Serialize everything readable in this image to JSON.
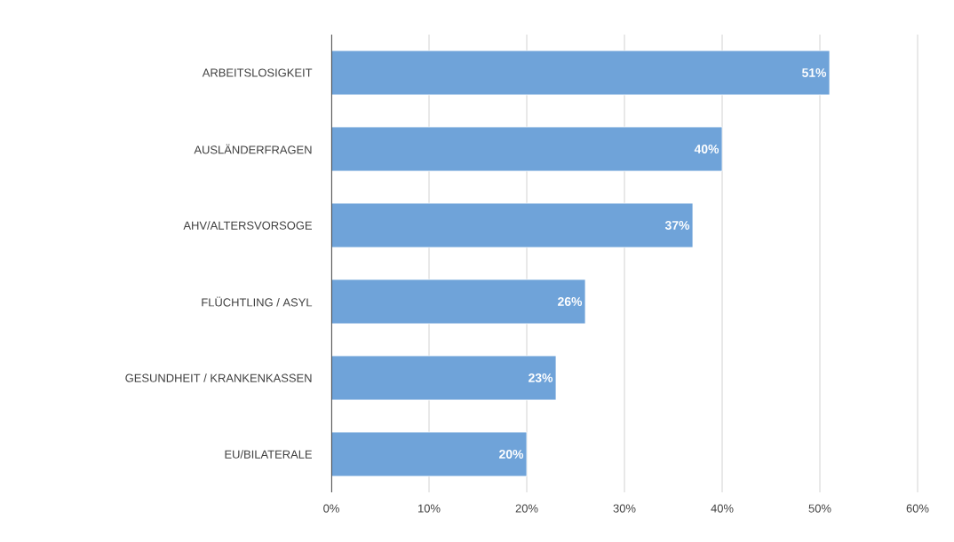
{
  "chart_data": {
    "type": "bar",
    "orientation": "horizontal",
    "categories": [
      "ARBEITSLOSIGKEIT",
      "AUSLÄNDERFRAGEN",
      "AHV/ALTERSVORSOGE",
      "FLÜCHTLING / ASYL",
      "GESUNDHEIT / KRANKENKASSEN",
      "EU/BILATERALE"
    ],
    "values": [
      51,
      40,
      37,
      26,
      23,
      20
    ],
    "value_labels": [
      "51%",
      "40%",
      "37%",
      "26%",
      "23%",
      "20%"
    ],
    "color": "#6fa3d9",
    "xlim": [
      0,
      60
    ],
    "xticks": [
      {
        "value": 0,
        "label": "0%"
      },
      {
        "value": 10,
        "label": "10%"
      },
      {
        "value": 20,
        "label": "20%"
      },
      {
        "value": 30,
        "label": "30%"
      },
      {
        "value": 40,
        "label": "40%"
      },
      {
        "value": 50,
        "label": "50%"
      },
      {
        "value": 60,
        "label": "60%"
      }
    ],
    "grid": "x"
  }
}
